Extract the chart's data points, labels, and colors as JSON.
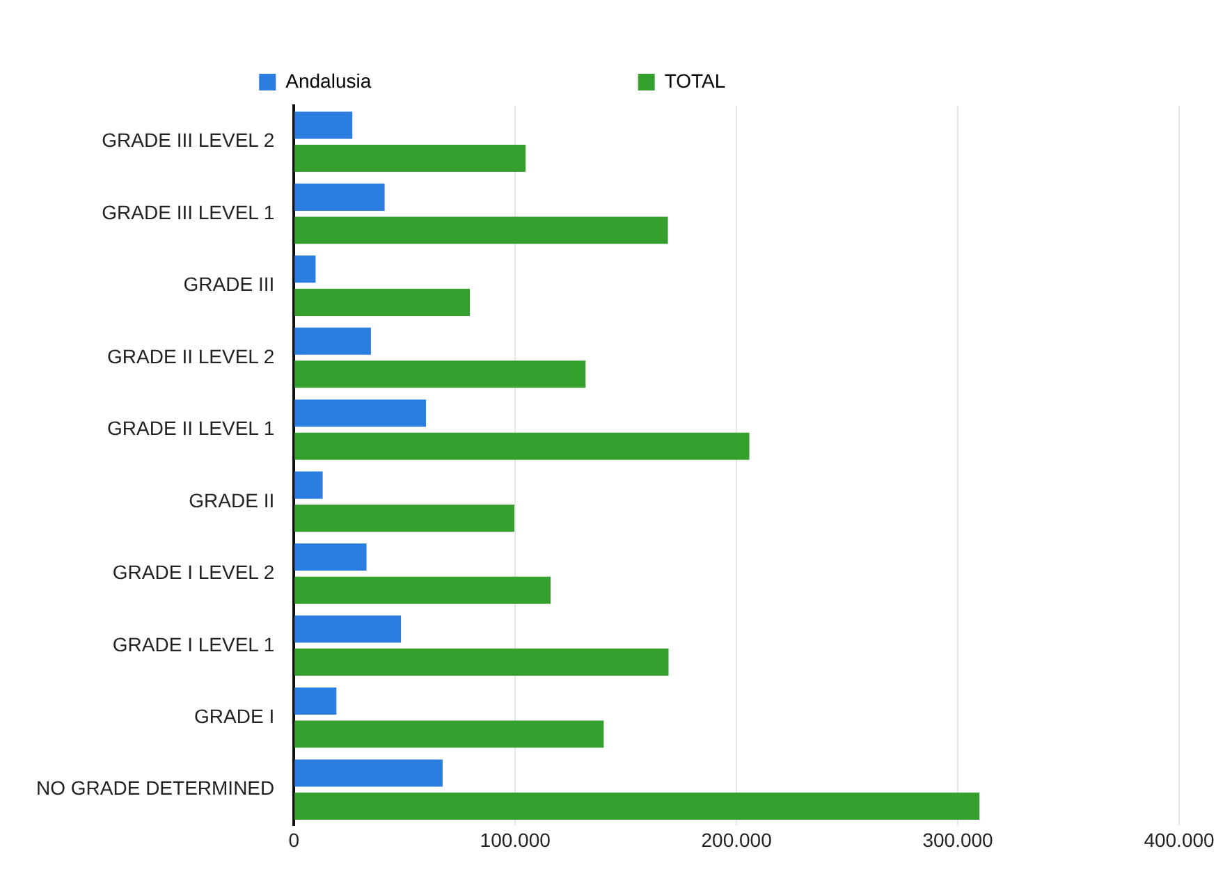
{
  "chart_data": {
    "type": "bar",
    "orientation": "horizontal",
    "categories": [
      "GRADE III LEVEL 2",
      "GRADE III LEVEL 1",
      "GRADE III",
      "GRADE II LEVEL 2",
      "GRADE II LEVEL 1",
      "GRADE II",
      "GRADE I LEVEL 2",
      "GRADE I LEVEL 1",
      "GRADE I",
      "NO GRADE DETERMINED"
    ],
    "series": [
      {
        "name": "Andalusia",
        "color": "#2b7de0",
        "values": [
          26400,
          41000,
          9800,
          34800,
          59700,
          13000,
          32800,
          48400,
          19200,
          67200
        ]
      },
      {
        "name": "TOTAL",
        "color": "#36a02e",
        "values": [
          104700,
          169000,
          79500,
          131800,
          205800,
          99600,
          116000,
          169300,
          140000,
          309800
        ]
      }
    ],
    "xlim": [
      0,
      400000
    ],
    "xticks": [
      0,
      {
        "value": 100000,
        "label": "100.000"
      },
      {
        "value": 200000,
        "label": "200.000"
      },
      {
        "value": 300000,
        "label": "300.000"
      },
      {
        "value": 400000,
        "label": "400.000"
      }
    ],
    "grid": "x",
    "legend": "top"
  }
}
